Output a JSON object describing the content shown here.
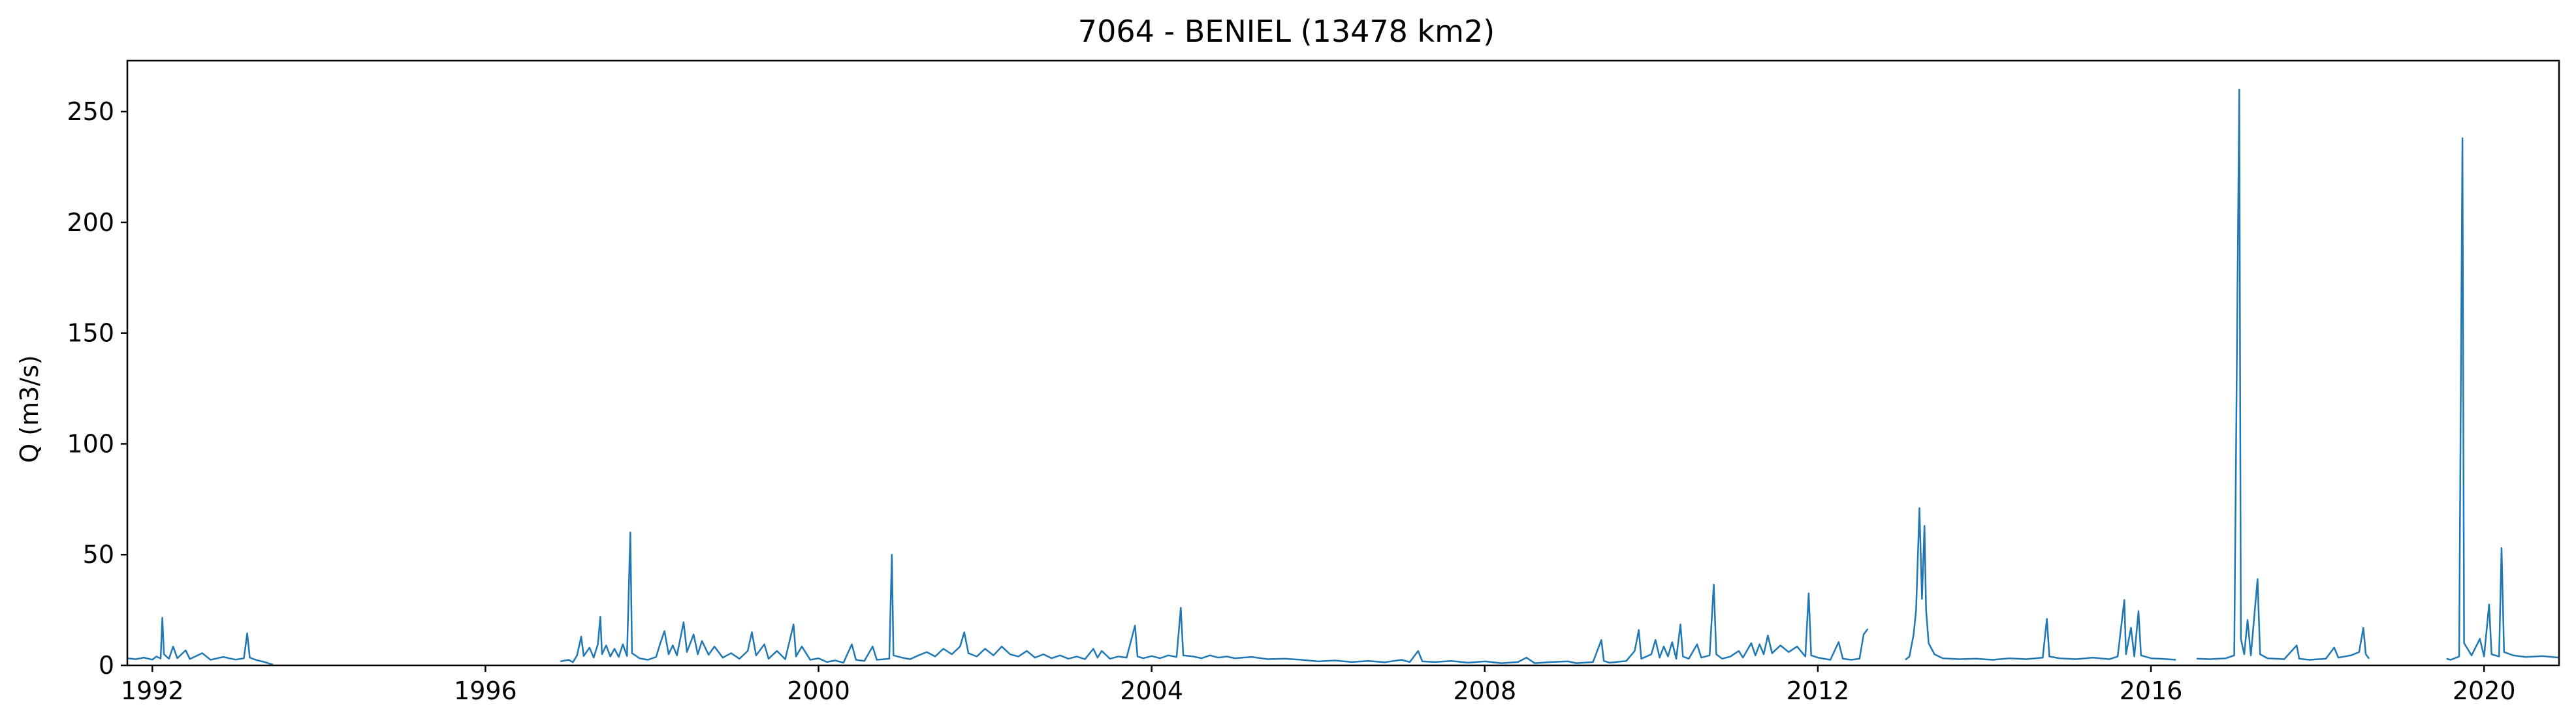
{
  "chart_data": {
    "type": "line",
    "title": "7064 - BENIEL (13478 km2)",
    "ylabel": "Q (m3/s)",
    "xlabel": "",
    "xlim": [
      1991.7,
      2020.9
    ],
    "ylim": [
      0,
      273
    ],
    "grid": false,
    "color": "#1f77b4",
    "x_ticks": [
      1992,
      1996,
      2000,
      2004,
      2008,
      2012,
      2016,
      2020
    ],
    "x_tick_labels": [
      "1992",
      "1996",
      "2000",
      "2004",
      "2008",
      "2012",
      "2016",
      "2020"
    ],
    "y_ticks": [
      0,
      50,
      100,
      150,
      200,
      250
    ],
    "y_tick_labels": [
      "0",
      "50",
      "100",
      "150",
      "200",
      "250"
    ],
    "series": [
      {
        "segments": [
          [
            [
              1991.7,
              3.2
            ],
            [
              1991.8,
              2.8
            ],
            [
              1991.9,
              3.5
            ],
            [
              1992.0,
              2.6
            ],
            [
              1992.05,
              4.0
            ],
            [
              1992.1,
              3.1
            ],
            [
              1992.12,
              21.5
            ],
            [
              1992.14,
              5.0
            ],
            [
              1992.2,
              3.0
            ],
            [
              1992.25,
              8.5
            ],
            [
              1992.3,
              3.2
            ],
            [
              1992.4,
              6.8
            ],
            [
              1992.45,
              2.9
            ],
            [
              1992.6,
              5.5
            ],
            [
              1992.7,
              2.5
            ],
            [
              1992.85,
              3.8
            ],
            [
              1993.0,
              2.6
            ],
            [
              1993.1,
              3.2
            ],
            [
              1993.14,
              14.5
            ],
            [
              1993.17,
              3.5
            ],
            [
              1993.25,
              2.4
            ],
            [
              1993.35,
              1.5
            ],
            [
              1993.45,
              0.3
            ]
          ],
          [
            [
              1996.9,
              1.8
            ],
            [
              1997.0,
              2.5
            ],
            [
              1997.05,
              1.4
            ],
            [
              1997.1,
              4.5
            ],
            [
              1997.15,
              13.0
            ],
            [
              1997.18,
              4.2
            ],
            [
              1997.25,
              8.0
            ],
            [
              1997.3,
              3.5
            ],
            [
              1997.35,
              9.5
            ],
            [
              1997.38,
              22.0
            ],
            [
              1997.4,
              5.0
            ],
            [
              1997.45,
              9.0
            ],
            [
              1997.5,
              4.0
            ],
            [
              1997.55,
              7.5
            ],
            [
              1997.6,
              3.8
            ],
            [
              1997.65,
              9.5
            ],
            [
              1997.7,
              4.2
            ],
            [
              1997.74,
              60.0
            ],
            [
              1997.76,
              5.5
            ],
            [
              1997.85,
              3.2
            ],
            [
              1997.95,
              2.5
            ],
            [
              1998.05,
              3.8
            ],
            [
              1998.1,
              10.0
            ],
            [
              1998.15,
              15.5
            ],
            [
              1998.2,
              5.0
            ],
            [
              1998.25,
              9.0
            ],
            [
              1998.3,
              4.5
            ],
            [
              1998.38,
              19.5
            ],
            [
              1998.42,
              6.0
            ],
            [
              1998.5,
              14.0
            ],
            [
              1998.55,
              5.0
            ],
            [
              1998.6,
              11.0
            ],
            [
              1998.68,
              4.8
            ],
            [
              1998.75,
              8.5
            ],
            [
              1998.85,
              3.5
            ],
            [
              1998.95,
              5.5
            ],
            [
              1999.05,
              3.0
            ],
            [
              1999.15,
              6.5
            ],
            [
              1999.2,
              15.0
            ],
            [
              1999.25,
              4.5
            ],
            [
              1999.35,
              9.5
            ],
            [
              1999.4,
              3.0
            ],
            [
              1999.5,
              6.5
            ],
            [
              1999.6,
              2.8
            ],
            [
              1999.7,
              18.5
            ],
            [
              1999.73,
              4.0
            ],
            [
              1999.8,
              8.5
            ],
            [
              1999.9,
              2.5
            ],
            [
              2000.0,
              3.2
            ],
            [
              2000.1,
              1.5
            ],
            [
              2000.2,
              2.2
            ],
            [
              2000.3,
              1.2
            ],
            [
              2000.4,
              9.5
            ],
            [
              2000.45,
              2.5
            ],
            [
              2000.55,
              2.0
            ],
            [
              2000.65,
              8.5
            ],
            [
              2000.7,
              2.5
            ],
            [
              2000.85,
              3.0
            ],
            [
              2000.88,
              50.0
            ],
            [
              2000.9,
              4.5
            ],
            [
              2001.0,
              3.5
            ],
            [
              2001.1,
              2.8
            ],
            [
              2001.2,
              4.5
            ],
            [
              2001.3,
              6.0
            ],
            [
              2001.4,
              4.0
            ],
            [
              2001.5,
              7.5
            ],
            [
              2001.6,
              5.0
            ],
            [
              2001.7,
              8.5
            ],
            [
              2001.75,
              15.0
            ],
            [
              2001.8,
              5.5
            ],
            [
              2001.9,
              4.0
            ],
            [
              2002.0,
              7.5
            ],
            [
              2002.1,
              4.5
            ],
            [
              2002.2,
              8.5
            ],
            [
              2002.3,
              5.0
            ],
            [
              2002.4,
              4.0
            ],
            [
              2002.5,
              6.5
            ],
            [
              2002.6,
              3.5
            ],
            [
              2002.7,
              5.0
            ],
            [
              2002.8,
              3.2
            ],
            [
              2002.9,
              4.5
            ],
            [
              2003.0,
              3.0
            ],
            [
              2003.1,
              4.0
            ],
            [
              2003.2,
              2.8
            ],
            [
              2003.3,
              7.5
            ],
            [
              2003.35,
              3.5
            ],
            [
              2003.4,
              6.5
            ],
            [
              2003.5,
              3.0
            ],
            [
              2003.6,
              4.0
            ],
            [
              2003.7,
              3.5
            ],
            [
              2003.8,
              18.0
            ],
            [
              2003.83,
              4.0
            ],
            [
              2003.9,
              3.2
            ],
            [
              2004.0,
              4.2
            ],
            [
              2004.1,
              3.2
            ],
            [
              2004.2,
              4.5
            ],
            [
              2004.3,
              3.8
            ],
            [
              2004.35,
              26.0
            ],
            [
              2004.38,
              4.5
            ],
            [
              2004.5,
              4.0
            ],
            [
              2004.6,
              3.2
            ],
            [
              2004.7,
              4.5
            ],
            [
              2004.8,
              3.5
            ],
            [
              2004.9,
              4.0
            ],
            [
              2005.0,
              3.2
            ],
            [
              2005.2,
              3.8
            ],
            [
              2005.4,
              2.8
            ],
            [
              2005.6,
              3.0
            ],
            [
              2005.8,
              2.5
            ],
            [
              2006.0,
              1.8
            ],
            [
              2006.2,
              2.2
            ],
            [
              2006.4,
              1.5
            ],
            [
              2006.6,
              2.0
            ],
            [
              2006.8,
              1.4
            ],
            [
              2007.0,
              2.5
            ],
            [
              2007.1,
              1.5
            ],
            [
              2007.2,
              6.5
            ],
            [
              2007.25,
              1.8
            ],
            [
              2007.4,
              1.5
            ],
            [
              2007.6,
              2.0
            ],
            [
              2007.8,
              1.2
            ],
            [
              2008.0,
              1.8
            ],
            [
              2008.2,
              1.0
            ],
            [
              2008.4,
              1.5
            ],
            [
              2008.5,
              3.5
            ],
            [
              2008.6,
              1.0
            ],
            [
              2008.8,
              1.5
            ],
            [
              2009.0,
              1.8
            ],
            [
              2009.1,
              1.0
            ],
            [
              2009.3,
              1.5
            ],
            [
              2009.4,
              11.5
            ],
            [
              2009.43,
              2.0
            ],
            [
              2009.5,
              1.2
            ],
            [
              2009.7,
              2.0
            ],
            [
              2009.8,
              6.5
            ],
            [
              2009.85,
              16.0
            ],
            [
              2009.88,
              3.0
            ],
            [
              2010.0,
              5.0
            ],
            [
              2010.05,
              11.5
            ],
            [
              2010.1,
              3.5
            ],
            [
              2010.15,
              8.5
            ],
            [
              2010.2,
              4.0
            ],
            [
              2010.25,
              10.5
            ],
            [
              2010.3,
              3.0
            ],
            [
              2010.35,
              18.5
            ],
            [
              2010.38,
              4.0
            ],
            [
              2010.45,
              3.0
            ],
            [
              2010.55,
              9.5
            ],
            [
              2010.6,
              3.5
            ],
            [
              2010.7,
              4.5
            ],
            [
              2010.75,
              36.5
            ],
            [
              2010.78,
              5.0
            ],
            [
              2010.85,
              3.0
            ],
            [
              2010.95,
              4.0
            ],
            [
              2011.05,
              6.5
            ],
            [
              2011.1,
              3.5
            ],
            [
              2011.2,
              10.0
            ],
            [
              2011.25,
              4.5
            ],
            [
              2011.3,
              9.5
            ],
            [
              2011.35,
              5.0
            ],
            [
              2011.4,
              13.5
            ],
            [
              2011.45,
              5.5
            ],
            [
              2011.55,
              9.0
            ],
            [
              2011.65,
              6.0
            ],
            [
              2011.75,
              8.5
            ],
            [
              2011.85,
              4.0
            ],
            [
              2011.89,
              32.5
            ],
            [
              2011.92,
              4.5
            ],
            [
              2012.0,
              3.5
            ],
            [
              2012.15,
              2.5
            ],
            [
              2012.25,
              10.5
            ],
            [
              2012.3,
              3.0
            ],
            [
              2012.4,
              2.5
            ],
            [
              2012.5,
              3.0
            ],
            [
              2012.55,
              14.0
            ],
            [
              2012.6,
              16.5
            ]
          ],
          [
            [
              2013.05,
              2.5
            ],
            [
              2013.1,
              4.0
            ],
            [
              2013.15,
              14.0
            ],
            [
              2013.18,
              25.0
            ],
            [
              2013.22,
              71.0
            ],
            [
              2013.25,
              30.0
            ],
            [
              2013.28,
              63.0
            ],
            [
              2013.3,
              25.0
            ],
            [
              2013.33,
              10.0
            ],
            [
              2013.4,
              5.0
            ],
            [
              2013.5,
              3.2
            ],
            [
              2013.7,
              2.8
            ],
            [
              2013.9,
              3.0
            ],
            [
              2014.1,
              2.5
            ],
            [
              2014.3,
              3.2
            ],
            [
              2014.5,
              2.8
            ],
            [
              2014.7,
              3.5
            ],
            [
              2014.75,
              21.0
            ],
            [
              2014.78,
              4.0
            ],
            [
              2014.9,
              3.2
            ],
            [
              2015.1,
              2.8
            ],
            [
              2015.3,
              3.5
            ],
            [
              2015.5,
              2.8
            ],
            [
              2015.6,
              4.0
            ],
            [
              2015.68,
              29.5
            ],
            [
              2015.7,
              5.0
            ],
            [
              2015.76,
              17.0
            ],
            [
              2015.8,
              4.0
            ],
            [
              2015.85,
              24.5
            ],
            [
              2015.88,
              4.5
            ],
            [
              2016.0,
              3.2
            ],
            [
              2016.2,
              2.8
            ],
            [
              2016.3,
              2.5
            ]
          ],
          [
            [
              2016.55,
              3.0
            ],
            [
              2016.7,
              2.8
            ],
            [
              2016.9,
              3.2
            ],
            [
              2017.0,
              4.5
            ],
            [
              2017.06,
              260.0
            ],
            [
              2017.08,
              12.0
            ],
            [
              2017.12,
              5.0
            ],
            [
              2017.16,
              20.5
            ],
            [
              2017.2,
              4.5
            ],
            [
              2017.28,
              39.0
            ],
            [
              2017.31,
              5.0
            ],
            [
              2017.4,
              3.2
            ],
            [
              2017.6,
              2.8
            ],
            [
              2017.75,
              9.0
            ],
            [
              2017.78,
              3.0
            ],
            [
              2017.9,
              2.5
            ],
            [
              2018.1,
              3.0
            ],
            [
              2018.2,
              8.0
            ],
            [
              2018.25,
              3.5
            ],
            [
              2018.4,
              4.5
            ],
            [
              2018.5,
              6.0
            ],
            [
              2018.55,
              17.0
            ],
            [
              2018.58,
              5.0
            ],
            [
              2018.62,
              3.0
            ]
          ],
          [
            [
              2019.55,
              3.0
            ],
            [
              2019.6,
              2.5
            ],
            [
              2019.7,
              4.0
            ],
            [
              2019.74,
              238.0
            ],
            [
              2019.76,
              10.0
            ],
            [
              2019.85,
              4.5
            ],
            [
              2019.95,
              12.0
            ],
            [
              2020.0,
              4.0
            ],
            [
              2020.06,
              27.5
            ],
            [
              2020.09,
              5.0
            ],
            [
              2020.18,
              4.0
            ],
            [
              2020.21,
              53.0
            ],
            [
              2020.24,
              6.0
            ],
            [
              2020.35,
              4.5
            ],
            [
              2020.5,
              3.8
            ],
            [
              2020.7,
              4.2
            ],
            [
              2020.9,
              3.5
            ]
          ]
        ]
      }
    ]
  }
}
